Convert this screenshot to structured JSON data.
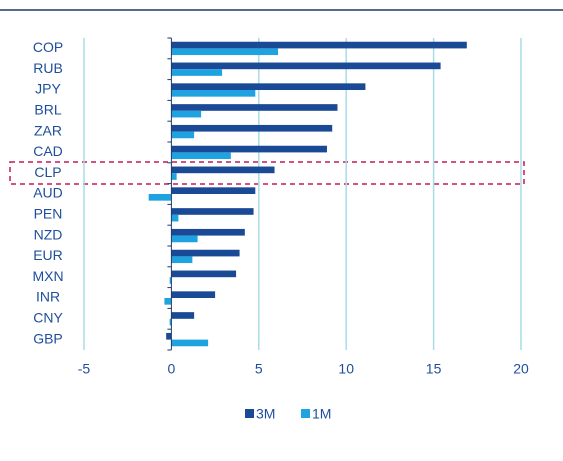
{
  "chart_data": {
    "type": "hbar",
    "categories": [
      "COP",
      "RUB",
      "JPY",
      "BRL",
      "ZAR",
      "CAD",
      "CLP",
      "AUD",
      "PEN",
      "NZD",
      "EUR",
      "MXN",
      "INR",
      "CNY",
      "GBP"
    ],
    "series": [
      {
        "name": "3M",
        "color": "#1a4a96",
        "values": [
          16.9,
          15.4,
          11.1,
          9.5,
          9.2,
          8.9,
          5.9,
          4.8,
          4.7,
          4.2,
          3.9,
          3.7,
          2.5,
          1.3,
          -0.3
        ]
      },
      {
        "name": "1M",
        "color": "#1fa3e0",
        "values": [
          6.1,
          2.9,
          4.8,
          1.7,
          1.3,
          3.4,
          0.3,
          -1.3,
          0.4,
          1.5,
          1.2,
          -0.1,
          -0.4,
          -0.1,
          2.1
        ]
      }
    ],
    "xlim": [
      -5,
      20
    ],
    "xticks": [
      -5,
      0,
      5,
      10,
      15,
      20
    ],
    "grid": true,
    "legend": "bottom"
  }
}
